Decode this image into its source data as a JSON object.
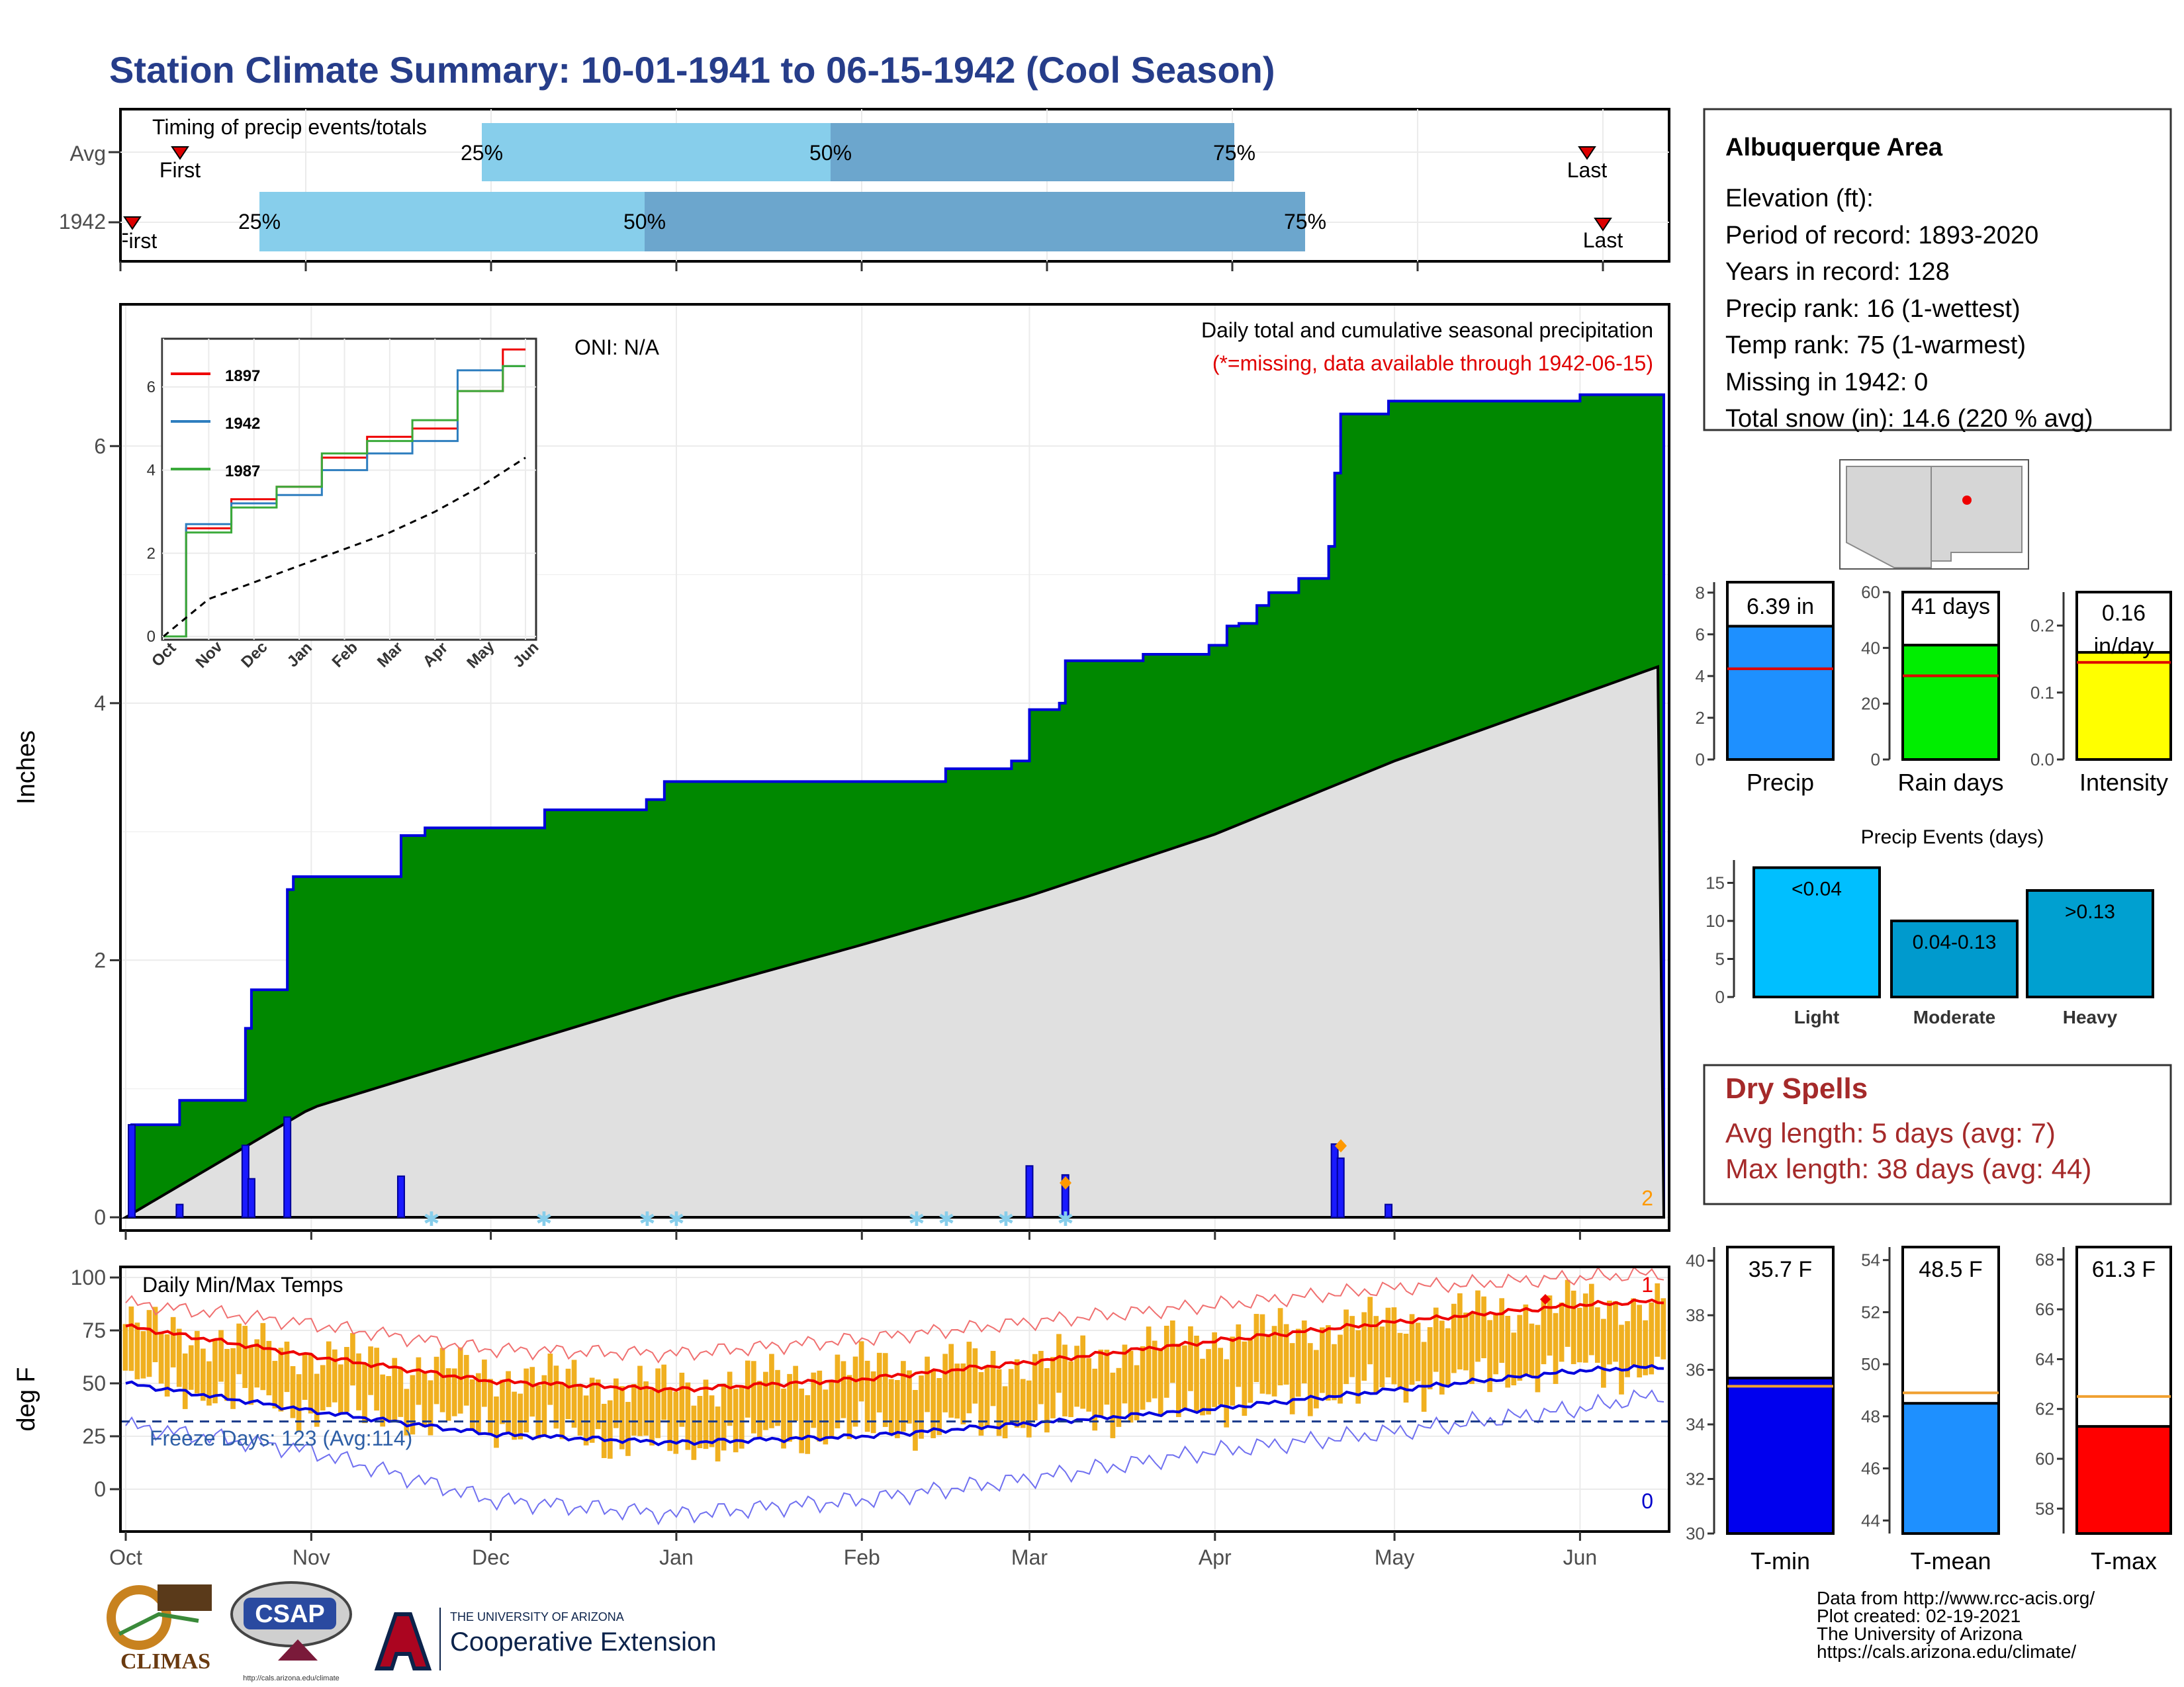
{
  "title": "Station Climate Summary: 10-01-1941 to 06-15-1942 (Cool Season)",
  "timing": {
    "title": "Timing of precip events/totals",
    "rows": [
      {
        "label": "Avg",
        "first_label": "First",
        "last_label": "Last",
        "p25": "25%",
        "p50": "50%",
        "p75": "75%"
      },
      {
        "label": "1942",
        "first_label": "First",
        "last_label": "Last",
        "p25": "25%",
        "p50": "50%",
        "p75": "75%"
      }
    ]
  },
  "precip_panel": {
    "ylabel": "Inches",
    "oni": "ONI: N/A",
    "caption": "Daily total and cumulative seasonal precipitation",
    "missing_note": "(*=missing, data available through 1942-06-15)",
    "corner_count": "2",
    "yticks": [
      "0",
      "2",
      "4",
      "6"
    ]
  },
  "inset": {
    "legend": [
      "1897",
      "1942",
      "1987"
    ],
    "xticks": [
      "Oct",
      "Nov",
      "Dec",
      "Jan",
      "Feb",
      "Mar",
      "Apr",
      "May",
      "Jun"
    ],
    "yticks": [
      "0",
      "2",
      "4",
      "6"
    ]
  },
  "temp_panel": {
    "ylabel": "deg F",
    "title": "Daily Min/Max Temps",
    "freeze": "Freeze Days: 123 (Avg:114)",
    "count_top": "1",
    "count_bottom": "0",
    "yticks": [
      "0",
      "25",
      "50",
      "75",
      "100"
    ],
    "xticks": [
      "Oct",
      "Nov",
      "Dec",
      "Jan",
      "Feb",
      "Mar",
      "Apr",
      "May",
      "Jun"
    ]
  },
  "station": {
    "name": "Albuquerque Area",
    "lines": [
      "Elevation (ft):",
      "Period of record: 1893-2020",
      "Years in record: 128",
      "Precip rank: 16 (1-wettest)",
      "Temp rank: 75 (1-warmest)",
      "Missing in 1942: 0",
      "Total snow (in): 14.6 (220 % avg)"
    ]
  },
  "stats": {
    "precip": {
      "label": "Precip",
      "value": "6.39 in",
      "yticks": [
        "0",
        "2",
        "4",
        "6",
        "8"
      ]
    },
    "raindays": {
      "label": "Rain days",
      "value": "41 days",
      "yticks": [
        "0",
        "20",
        "40",
        "60"
      ]
    },
    "intensity": {
      "label": "Intensity",
      "value1": "0.16",
      "value2": "in/day",
      "yticks": [
        "0.0",
        "0.1",
        "0.2"
      ]
    }
  },
  "events": {
    "title": "Precip Events (days)",
    "yticks": [
      "0",
      "5",
      "10",
      "15"
    ],
    "bars": [
      {
        "label": "Light",
        "value_label": "<0.04"
      },
      {
        "label": "Moderate",
        "value_label": "0.04-0.13"
      },
      {
        "label": "Heavy",
        "value_label": ">0.13"
      }
    ]
  },
  "dry_spells": {
    "title": "Dry Spells",
    "avg": "Avg length: 5 days (avg: 7)",
    "max": "Max length: 38 days (avg: 44)"
  },
  "temp_stats": {
    "tmin": {
      "label": "T-min",
      "value": "35.7 F",
      "yticks": [
        "30",
        "32",
        "34",
        "36",
        "38",
        "40"
      ]
    },
    "tmean": {
      "label": "T-mean",
      "value": "48.5 F",
      "yticks": [
        "44",
        "46",
        "48",
        "50",
        "52",
        "54"
      ]
    },
    "tmax": {
      "label": "T-max",
      "value": "61.3 F",
      "yticks": [
        "58",
        "60",
        "62",
        "64",
        "66",
        "68"
      ]
    }
  },
  "footer": {
    "lines": [
      "Data from http://www.rcc-acis.org/",
      "Plot created: 02-19-2021",
      "The University of Arizona",
      "https://cals.arizona.edu/climate/"
    ],
    "logos": {
      "climas": "CLIMAS",
      "csap": "CSAP",
      "csap_url": "http://cals.arizona.edu/climate",
      "ua_top": "THE UNIVERSITY OF ARIZONA",
      "ua_bottom": "Cooperative Extension"
    }
  },
  "colors": {
    "title": "#263d8a",
    "green": "#008800",
    "grey_normal": "#e0e0e0",
    "blue_line": "#0000dd",
    "bar_light": "#87ceeb",
    "bar_mid": "#6ca6cd",
    "temp_bar": "#f0b020",
    "dry": "#a52a2a"
  },
  "chart_data": [
    {
      "type": "area",
      "title": "Daily total and cumulative seasonal precipitation",
      "ylabel": "Inches",
      "ylim": [
        0,
        7
      ],
      "x_range": [
        "1941-10-01",
        "1942-06-15"
      ],
      "series": [
        {
          "name": "1942",
          "x": [
            "1941-10-01",
            "1941-10-02",
            "1941-10-09",
            "1941-10-10",
            "1941-10-20",
            "1941-10-21",
            "1941-10-22",
            "1941-10-23",
            "1941-10-28",
            "1941-10-29",
            "1941-11-15",
            "1941-11-16",
            "1941-11-20",
            "1941-12-10",
            "1941-12-27",
            "1941-12-30",
            "1942-02-08",
            "1942-02-15",
            "1942-02-26",
            "1942-03-01",
            "1942-03-06",
            "1942-03-07",
            "1942-03-20",
            "1942-03-31",
            "1942-04-03",
            "1942-04-05",
            "1942-04-08",
            "1942-04-10",
            "1942-04-15",
            "1942-04-20",
            "1942-04-21",
            "1942-04-22",
            "1942-04-30",
            "1942-06-01",
            "1942-06-15"
          ],
          "values": [
            0.0,
            0.72,
            0.72,
            0.91,
            0.91,
            1.47,
            1.77,
            1.77,
            2.55,
            2.65,
            2.65,
            2.97,
            3.03,
            3.17,
            3.25,
            3.39,
            3.39,
            3.49,
            3.55,
            3.95,
            4.0,
            4.33,
            4.38,
            4.45,
            4.6,
            4.62,
            4.76,
            4.86,
            4.97,
            5.22,
            5.79,
            6.25,
            6.35,
            6.4,
            6.4
          ]
        },
        {
          "name": "Avg cumulative",
          "x": [
            "1941-10-01",
            "1941-11-01",
            "1941-12-01",
            "1942-01-01",
            "1942-02-01",
            "1942-03-01",
            "1942-04-01",
            "1942-05-01",
            "1942-06-15"
          ],
          "values": [
            0.0,
            0.85,
            1.28,
            1.72,
            2.12,
            2.5,
            2.98,
            3.55,
            4.3
          ]
        }
      ],
      "daily_totals": {
        "x": [
          "1941-10-02",
          "1941-10-10",
          "1941-10-21",
          "1941-10-22",
          "1941-10-28",
          "1941-11-16",
          "1942-03-01",
          "1942-03-07",
          "1942-04-21",
          "1942-04-22",
          "1942-04-30"
        ],
        "values": [
          0.72,
          0.1,
          0.56,
          0.3,
          0.78,
          0.32,
          0.4,
          0.33,
          0.57,
          0.46,
          0.1
        ]
      }
    },
    {
      "type": "line",
      "title": "",
      "ylim": [
        0,
        7
      ],
      "xticks": [
        "Oct",
        "Nov",
        "Dec",
        "Jan",
        "Feb",
        "Mar",
        "Apr",
        "May",
        "Jun"
      ],
      "series": [
        {
          "name": "1897",
          "values": [
            0.0,
            2.6,
            3.3,
            3.6,
            4.3,
            4.8,
            5.0,
            5.9,
            6.9
          ]
        },
        {
          "name": "1942",
          "values": [
            0.0,
            2.7,
            3.2,
            3.4,
            4.0,
            4.4,
            4.7,
            6.4,
            6.5
          ]
        },
        {
          "name": "1987",
          "values": [
            0.0,
            2.5,
            3.1,
            3.6,
            4.4,
            4.7,
            5.2,
            5.9,
            6.5
          ]
        },
        {
          "name": "Average",
          "values": [
            0.0,
            0.9,
            1.3,
            1.7,
            2.1,
            2.5,
            3.0,
            3.6,
            4.3
          ]
        }
      ]
    },
    {
      "type": "bar",
      "title": "Daily Min/Max Temps",
      "ylabel": "deg F",
      "ylim": [
        -20,
        105
      ],
      "x": [
        "1941-10-01",
        "1941-11-01",
        "1941-12-01",
        "1942-01-01",
        "1942-02-01",
        "1942-03-01",
        "1942-04-01",
        "1942-05-01",
        "1942-06-01",
        "1942-06-15"
      ],
      "series": [
        {
          "name": "Normal max",
          "values": [
            77,
            63,
            51,
            47,
            52,
            60,
            70,
            79,
            87,
            89
          ]
        },
        {
          "name": "Normal min",
          "values": [
            50,
            37,
            26,
            22,
            25,
            31,
            38,
            47,
            56,
            58
          ]
        },
        {
          "name": "Record high",
          "values": [
            88,
            78,
            66,
            64,
            71,
            79,
            87,
            95,
            100,
            102
          ]
        },
        {
          "name": "Record low",
          "values": [
            30,
            18,
            -5,
            -12,
            -5,
            5,
            18,
            27,
            38,
            45
          ]
        },
        {
          "name": "Observed max",
          "values": [
            78,
            64,
            55,
            48,
            58,
            60,
            72,
            80,
            88,
            88
          ]
        },
        {
          "name": "Observed min",
          "values": [
            52,
            38,
            30,
            20,
            28,
            32,
            40,
            48,
            58,
            56
          ]
        }
      ],
      "freeze_line": 32
    },
    {
      "type": "bar",
      "title": "",
      "categories": [
        "Precip"
      ],
      "values": [
        6.39
      ],
      "normal": 4.35,
      "ylim": [
        0,
        8.5
      ]
    },
    {
      "type": "bar",
      "title": "",
      "categories": [
        "Rain days"
      ],
      "values": [
        41
      ],
      "normal": 30,
      "ylim": [
        0,
        60
      ]
    },
    {
      "type": "bar",
      "title": "",
      "categories": [
        "Intensity"
      ],
      "values": [
        0.16
      ],
      "normal": 0.145,
      "ylim": [
        0,
        0.25
      ]
    },
    {
      "type": "bar",
      "title": "Precip Events (days)",
      "categories": [
        "Light",
        "Moderate",
        "Heavy"
      ],
      "values": [
        17,
        10,
        14
      ],
      "ylim": [
        0,
        18
      ]
    },
    {
      "type": "bar",
      "title": "",
      "categories": [
        "T-min"
      ],
      "values": [
        35.7
      ],
      "normal": 35.4,
      "ylim": [
        30,
        40.5
      ]
    },
    {
      "type": "bar",
      "title": "",
      "categories": [
        "T-mean"
      ],
      "values": [
        48.5
      ],
      "normal": 48.9,
      "ylim": [
        43.5,
        54.5
      ]
    },
    {
      "type": "bar",
      "title": "",
      "categories": [
        "T-max"
      ],
      "values": [
        61.3
      ],
      "normal": 62.5,
      "ylim": [
        57,
        68.5
      ]
    }
  ]
}
